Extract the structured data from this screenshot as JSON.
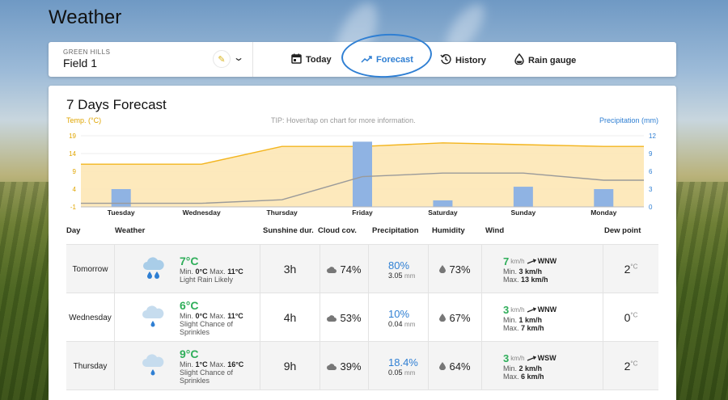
{
  "app": {
    "title": "Weather"
  },
  "location": {
    "region": "GREEN HILLS",
    "field": "Field 1"
  },
  "tabs": [
    {
      "label": "Today",
      "icon": "calendar-icon",
      "active": false
    },
    {
      "label": "Forecast",
      "icon": "trend-up-icon",
      "active": true
    },
    {
      "label": "History",
      "icon": "history-icon",
      "active": false
    },
    {
      "label": "Rain gauge",
      "icon": "droplet-icon",
      "active": false
    }
  ],
  "forecast": {
    "title": "7 Days Forecast",
    "temp_label": "Temp. (°C)",
    "tip": "TIP: Hover/tap on chart for more information.",
    "precip_label": "Precipitation (mm)"
  },
  "chart_data": {
    "type": "bar",
    "categories": [
      "Tuesday",
      "Wednesday",
      "Thursday",
      "Friday",
      "Saturday",
      "Sunday",
      "Monday"
    ],
    "temp_ticks": [
      "19",
      "14",
      "9",
      "4",
      "-1"
    ],
    "precip_ticks": [
      "12",
      "9",
      "6",
      "3",
      "0"
    ],
    "temp_range": [
      -1,
      19
    ],
    "precip_range": [
      0,
      12
    ],
    "series": [
      {
        "kind": "area",
        "axis": "temp",
        "color": "#f3b51f",
        "values": [
          11,
          11,
          16,
          16,
          17,
          16.5,
          16
        ]
      },
      {
        "kind": "line",
        "axis": "temp",
        "color": "#9a9a9a",
        "values": [
          0,
          0,
          1,
          7.5,
          8.5,
          8.5,
          6.5
        ]
      },
      {
        "kind": "bar",
        "axis": "precip",
        "color": "#8fb3e3",
        "values": [
          3,
          0,
          0,
          11,
          1.1,
          3.4,
          3
        ]
      }
    ]
  },
  "table": {
    "headers": {
      "day": "Day",
      "weather": "Weather",
      "sunshine": "Sunshine dur.",
      "cloud": "Cloud cov.",
      "precip": "Precipitation",
      "humidity": "Humidity",
      "wind": "Wind",
      "dew": "Dew point"
    },
    "min_label": "Min.",
    "max_label": "Max.",
    "deg": "°C",
    "mm": "mm",
    "kmh": "km/h",
    "rows": [
      {
        "day": "Tomorrow",
        "icon": "rain-cloud-icon",
        "temp": "7°C",
        "min": "0°C",
        "max": "11°C",
        "desc": "Light Rain Likely",
        "sunshine": "3h",
        "cloud": "74%",
        "precip_pct": "80%",
        "precip_mm": "3.05",
        "humidity": "73%",
        "wind_speed": "7",
        "wind_dir": "WNW",
        "wind_min": "3 km/h",
        "wind_max": "13 km/h",
        "dew": "2"
      },
      {
        "day": "Wednesday",
        "icon": "sprinkle-cloud-icon",
        "temp": "6°C",
        "min": "0°C",
        "max": "11°C",
        "desc": "Slight Chance of Sprinkles",
        "sunshine": "4h",
        "cloud": "53%",
        "precip_pct": "10%",
        "precip_mm": "0.04",
        "humidity": "67%",
        "wind_speed": "3",
        "wind_dir": "WNW",
        "wind_min": "1 km/h",
        "wind_max": "7 km/h",
        "dew": "0"
      },
      {
        "day": "Thursday",
        "icon": "sprinkle-cloud-icon",
        "temp": "9°C",
        "min": "1°C",
        "max": "16°C",
        "desc": "Slight Chance of Sprinkles",
        "sunshine": "9h",
        "cloud": "39%",
        "precip_pct": "18.4%",
        "precip_mm": "0.05",
        "humidity": "64%",
        "wind_speed": "3",
        "wind_dir": "WSW",
        "wind_min": "2 km/h",
        "wind_max": "6 km/h",
        "dew": "2"
      }
    ]
  }
}
